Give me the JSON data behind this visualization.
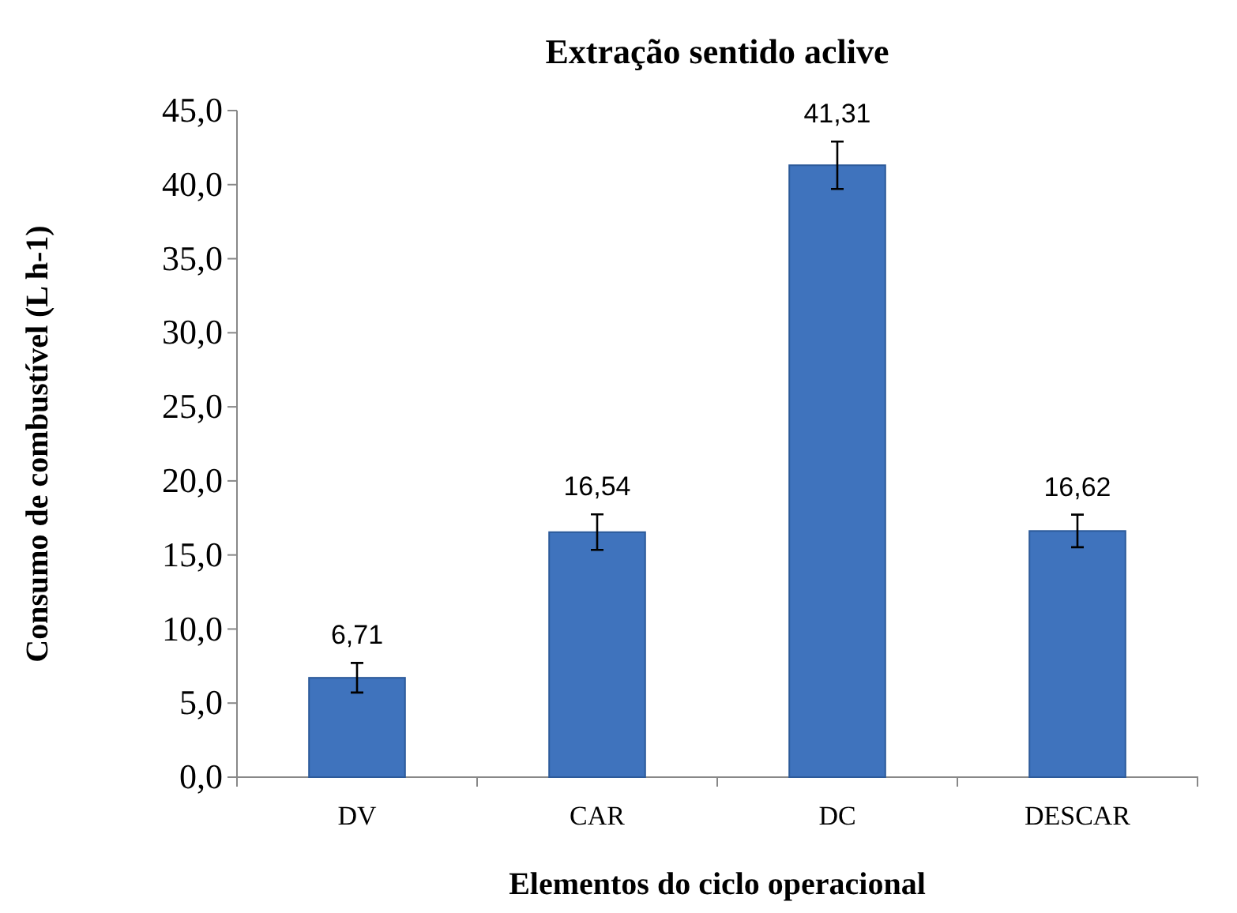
{
  "chart_data": {
    "type": "bar",
    "title": "Extração sentido aclive",
    "xlabel": "Elementos do ciclo operacional",
    "ylabel": "Consumo de combustível (L h-1)",
    "categories": [
      "DV",
      "CAR",
      "DC",
      "DESCAR"
    ],
    "values": [
      6.71,
      16.54,
      41.31,
      16.62
    ],
    "errors": [
      1.0,
      1.2,
      1.6,
      1.1
    ],
    "value_labels": [
      "6,71",
      "16,54",
      "41,31",
      "16,62"
    ],
    "color": "#3f73bd",
    "ylim": [
      0,
      45
    ],
    "yticks": [
      {
        "value": 0,
        "label": "0,0"
      },
      {
        "value": 5,
        "label": "5,0"
      },
      {
        "value": 10,
        "label": "10,0"
      },
      {
        "value": 15,
        "label": "15,0"
      },
      {
        "value": 20,
        "label": "20,0"
      },
      {
        "value": 25,
        "label": "25,0"
      },
      {
        "value": 30,
        "label": "30,0"
      },
      {
        "value": 35,
        "label": "35,0"
      },
      {
        "value": 40,
        "label": "40,0"
      },
      {
        "value": 45,
        "label": "45,0"
      }
    ],
    "grid": false
  }
}
